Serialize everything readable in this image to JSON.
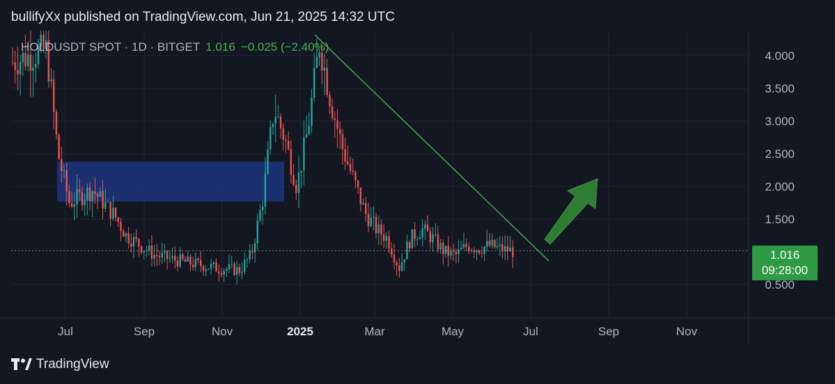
{
  "header": {
    "publish_line": "bullifyXx published on TradingView.com, Jun 21, 2025 14:32 UTC"
  },
  "legend": {
    "symbol_line": "HOLDUSDT SPOT · 1D · BITGET",
    "last": "1.016",
    "change": "−0.025 (−2.40%)"
  },
  "price_tag": {
    "price": "1.016",
    "countdown": "09:28:00",
    "color": "#2e9a43"
  },
  "footer": {
    "brand": "TradingView"
  },
  "chart_data": {
    "type": "candlestick",
    "title": "",
    "x_ticks": [
      "Jul",
      "Sep",
      "Nov",
      "2025",
      "Mar",
      "May",
      "Jul",
      "Sep",
      "Nov"
    ],
    "y_ticks": [
      "0.500",
      "1.500",
      "2.000",
      "2.500",
      "3.000",
      "3.500",
      "4.000"
    ],
    "ylim": [
      0.0,
      4.3
    ],
    "last_price": 1.016,
    "series": [
      {
        "name": "",
        "note_path": "daily close path",
        "points": [
          [
            0,
            3.9
          ],
          [
            0.06,
            4.1
          ],
          [
            0.08,
            2.5
          ],
          [
            0.1,
            1.75
          ],
          [
            0.14,
            1.95
          ],
          [
            0.18,
            1.55
          ],
          [
            0.2,
            1.25
          ],
          [
            0.25,
            0.95
          ],
          [
            0.3,
            0.85
          ],
          [
            0.36,
            0.75
          ],
          [
            0.4,
            0.72
          ],
          [
            0.42,
            0.95
          ],
          [
            0.44,
            1.8
          ],
          [
            0.46,
            3.2
          ],
          [
            0.48,
            2.7
          ],
          [
            0.5,
            2.0
          ],
          [
            0.52,
            2.9
          ],
          [
            0.54,
            4.2
          ],
          [
            0.56,
            3.3
          ],
          [
            0.58,
            2.6
          ],
          [
            0.6,
            2.1
          ],
          [
            0.62,
            1.6
          ],
          [
            0.64,
            1.35
          ],
          [
            0.66,
            1.2
          ],
          [
            0.68,
            0.75
          ],
          [
            0.7,
            1.2
          ],
          [
            0.72,
            1.35
          ],
          [
            0.74,
            1.2
          ],
          [
            0.76,
            1.0
          ],
          [
            0.78,
            0.95
          ],
          [
            0.8,
            1.1
          ],
          [
            0.82,
            1.05
          ],
          [
            0.84,
            1.1
          ],
          [
            0.86,
            1.04
          ],
          [
            0.88,
            1.016
          ]
        ]
      }
    ],
    "colors": {
      "up": "#26a69a",
      "down": "#ef5350",
      "zone": "#1e3a8a",
      "trend": "#4caf50",
      "arrow": "#2e7d32"
    }
  }
}
